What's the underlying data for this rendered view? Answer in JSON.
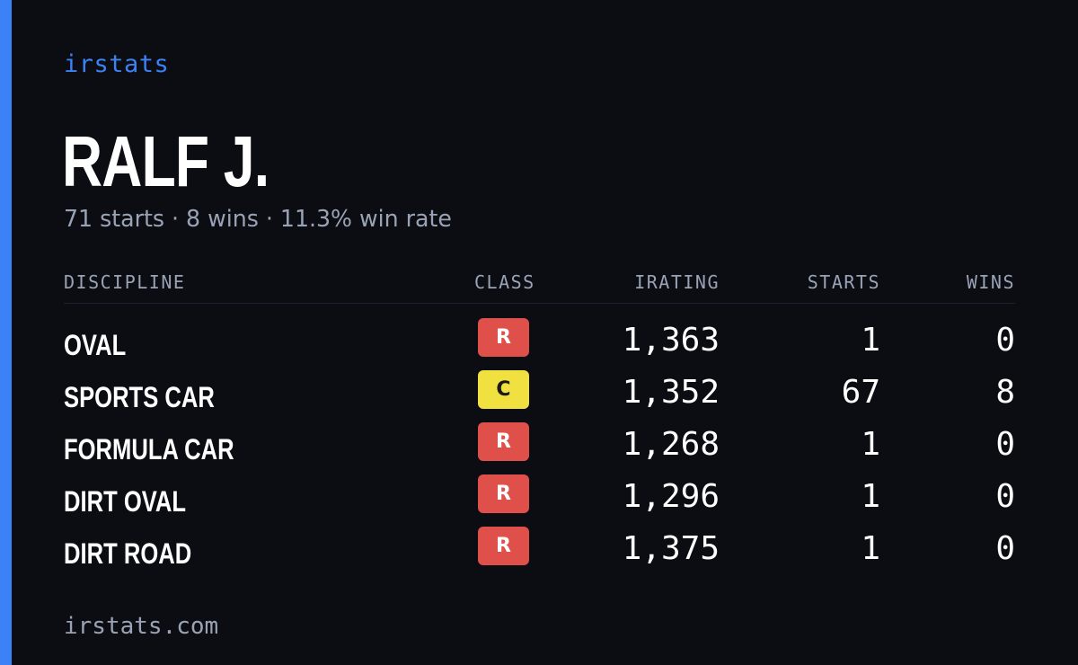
{
  "brand": "irstats",
  "driver": {
    "name": "RALF J.",
    "summary": "71 starts · 8 wins · 11.3% win rate"
  },
  "table": {
    "headers": {
      "discipline": "DISCIPLINE",
      "class": "CLASS",
      "irating": "IRATING",
      "starts": "STARTS",
      "wins": "WINS"
    },
    "rows": [
      {
        "discipline": "OVAL",
        "class": "R",
        "irating": "1,363",
        "starts": "1",
        "wins": "0"
      },
      {
        "discipline": "SPORTS CAR",
        "class": "C",
        "irating": "1,352",
        "starts": "67",
        "wins": "8"
      },
      {
        "discipline": "FORMULA CAR",
        "class": "R",
        "irating": "1,268",
        "starts": "1",
        "wins": "0"
      },
      {
        "discipline": "DIRT OVAL",
        "class": "R",
        "irating": "1,296",
        "starts": "1",
        "wins": "0"
      },
      {
        "discipline": "DIRT ROAD",
        "class": "R",
        "irating": "1,375",
        "starts": "1",
        "wins": "0"
      }
    ]
  },
  "class_colors": {
    "R": {
      "bg": "#e0504a",
      "fg": "#ffffff"
    },
    "C": {
      "bg": "#f0e040",
      "fg": "#1a1a1a"
    }
  },
  "colors": {
    "accent": "#3b82f6",
    "background": "#0b0d13",
    "muted_text": "#9aa3b5"
  },
  "footer": "irstats.com"
}
